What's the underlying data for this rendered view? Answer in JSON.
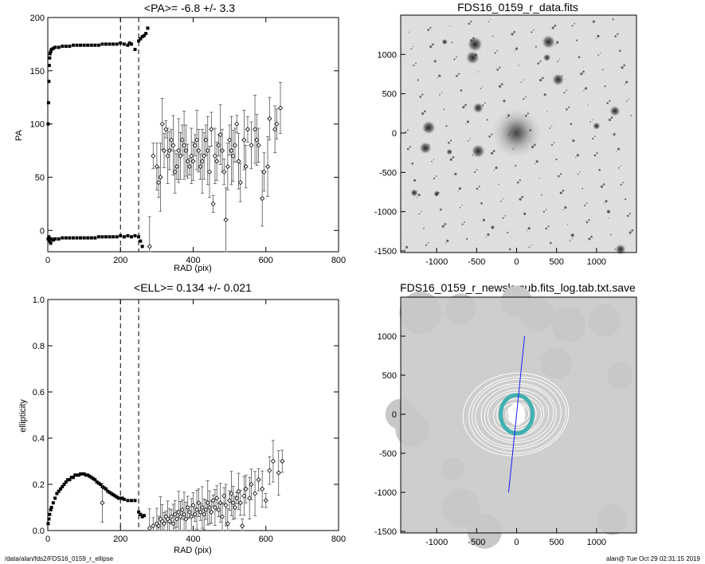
{
  "footer": {
    "left": "/data/alan/fds2/FDS16_0159_r_ellipse",
    "right": "alan@  Tue Oct 29 02:31:15 2019"
  },
  "chart_data": [
    {
      "type": "scatter",
      "title": "<PA>=  -6.8 +/-   3.3",
      "xlabel": "RAD (pix)",
      "ylabel": "PA",
      "xlim": [
        0,
        800
      ],
      "ylim": [
        -20,
        200
      ],
      "xticks": [
        "0",
        "200",
        "400",
        "600",
        "800"
      ],
      "yticks": [
        "0",
        "50",
        "100",
        "150",
        "200"
      ],
      "vlines": [
        200,
        250
      ],
      "series": [
        {
          "points_upper_dense": [
            [
              1,
              100
            ],
            [
              2,
              120
            ],
            [
              3,
              140
            ],
            [
              4,
              155
            ],
            [
              5,
              162
            ],
            [
              6,
              166
            ],
            [
              8,
              168
            ],
            [
              10,
              170
            ],
            [
              15,
              171
            ],
            [
              20,
              172
            ],
            [
              30,
              172
            ],
            [
              40,
              173
            ],
            [
              50,
              173
            ],
            [
              60,
              173
            ],
            [
              70,
              174
            ],
            [
              80,
              174
            ],
            [
              90,
              174
            ],
            [
              100,
              174
            ],
            [
              110,
              174
            ],
            [
              120,
              174
            ],
            [
              130,
              174
            ],
            [
              140,
              174
            ],
            [
              150,
              175
            ],
            [
              160,
              175
            ],
            [
              170,
              175
            ],
            [
              180,
              175
            ],
            [
              190,
              175
            ],
            [
              200,
              176
            ],
            [
              210,
              175
            ],
            [
              220,
              174
            ],
            [
              225,
              176
            ],
            [
              230,
              175
            ],
            [
              240,
              170
            ],
            [
              250,
              178
            ],
            [
              255,
              180
            ],
            [
              260,
              182
            ],
            [
              265,
              183
            ],
            [
              270,
              185
            ],
            [
              275,
              190
            ]
          ],
          "points_lower_dense": [
            [
              1,
              -8
            ],
            [
              3,
              -6
            ],
            [
              5,
              -10
            ],
            [
              8,
              -12
            ],
            [
              10,
              -8
            ],
            [
              15,
              -9
            ],
            [
              20,
              -8
            ],
            [
              30,
              -8
            ],
            [
              40,
              -7
            ],
            [
              50,
              -7
            ],
            [
              60,
              -7
            ],
            [
              70,
              -7
            ],
            [
              80,
              -7
            ],
            [
              90,
              -7
            ],
            [
              100,
              -7
            ],
            [
              110,
              -7
            ],
            [
              120,
              -7
            ],
            [
              130,
              -7
            ],
            [
              140,
              -6
            ],
            [
              150,
              -6
            ],
            [
              160,
              -6
            ],
            [
              170,
              -6
            ],
            [
              180,
              -6
            ],
            [
              190,
              -6
            ],
            [
              200,
              -5
            ],
            [
              210,
              -6
            ],
            [
              220,
              -5
            ],
            [
              230,
              -6
            ],
            [
              240,
              -5
            ],
            [
              250,
              -6
            ],
            [
              255,
              -10
            ],
            [
              260,
              -15
            ]
          ],
          "points_outer": [
            [
              280,
              -15
            ],
            [
              290,
              70
            ],
            [
              300,
              60
            ],
            [
              305,
              45
            ],
            [
              310,
              50
            ],
            [
              315,
              100
            ],
            [
              320,
              75
            ],
            [
              325,
              95
            ],
            [
              330,
              70
            ],
            [
              335,
              75
            ],
            [
              340,
              85
            ],
            [
              345,
              80
            ],
            [
              350,
              55
            ],
            [
              355,
              60
            ],
            [
              360,
              75
            ],
            [
              365,
              70
            ],
            [
              370,
              85
            ],
            [
              375,
              80
            ],
            [
              380,
              75
            ],
            [
              385,
              65
            ],
            [
              390,
              60
            ],
            [
              395,
              70
            ],
            [
              400,
              65
            ],
            [
              405,
              80
            ],
            [
              410,
              85
            ],
            [
              415,
              75
            ],
            [
              420,
              60
            ],
            [
              425,
              65
            ],
            [
              430,
              70
            ],
            [
              435,
              85
            ],
            [
              440,
              75
            ],
            [
              445,
              55
            ],
            [
              450,
              95
            ],
            [
              455,
              25
            ],
            [
              460,
              70
            ],
            [
              465,
              65
            ],
            [
              470,
              80
            ],
            [
              475,
              90
            ],
            [
              480,
              75
            ],
            [
              485,
              55
            ],
            [
              490,
              10
            ],
            [
              495,
              60
            ],
            [
              500,
              85
            ],
            [
              505,
              75
            ],
            [
              510,
              70
            ],
            [
              515,
              80
            ],
            [
              520,
              100
            ],
            [
              525,
              65
            ],
            [
              530,
              45
            ],
            [
              540,
              85
            ],
            [
              545,
              60
            ],
            [
              550,
              95
            ],
            [
              560,
              80
            ],
            [
              570,
              95
            ],
            [
              575,
              85
            ],
            [
              580,
              80
            ],
            [
              590,
              30
            ],
            [
              595,
              55
            ],
            [
              605,
              60
            ],
            [
              610,
              105
            ],
            [
              625,
              95
            ],
            [
              630,
              100
            ],
            [
              640,
              115
            ]
          ]
        }
      ]
    },
    {
      "type": "heatmap",
      "title": "FDS16_0159_r_data.fits",
      "xlim": [
        -1450,
        1500
      ],
      "ylim": [
        -1520,
        1500
      ],
      "xticks": [
        "-1000",
        "-500",
        "0",
        "500",
        "1000"
      ],
      "yticks": [
        "1000",
        "500",
        "0",
        "-500",
        "-1000",
        "-1500"
      ]
    },
    {
      "type": "scatter",
      "title": "<ELL>= 0.134 +/-  0.021",
      "xlabel": "RAD (pix)",
      "ylabel": "ellipticity",
      "xlim": [
        0,
        800
      ],
      "ylim": [
        0,
        1
      ],
      "xticks": [
        "0",
        "200",
        "400",
        "600",
        "800"
      ],
      "yticks": [
        "0.0",
        "0.2",
        "0.4",
        "0.6",
        "0.8",
        "1.0"
      ],
      "vlines": [
        200,
        250
      ],
      "series": [
        {
          "points_dense": [
            [
              1,
              0.03
            ],
            [
              3,
              0.05
            ],
            [
              5,
              0.07
            ],
            [
              8,
              0.09
            ],
            [
              10,
              0.1
            ],
            [
              15,
              0.12
            ],
            [
              20,
              0.14
            ],
            [
              25,
              0.16
            ],
            [
              30,
              0.17
            ],
            [
              35,
              0.18
            ],
            [
              40,
              0.19
            ],
            [
              45,
              0.2
            ],
            [
              50,
              0.21
            ],
            [
              55,
              0.22
            ],
            [
              60,
              0.22
            ],
            [
              65,
              0.23
            ],
            [
              70,
              0.23
            ],
            [
              75,
              0.24
            ],
            [
              80,
              0.24
            ],
            [
              85,
              0.24
            ],
            [
              90,
              0.245
            ],
            [
              95,
              0.245
            ],
            [
              100,
              0.245
            ],
            [
              105,
              0.24
            ],
            [
              110,
              0.24
            ],
            [
              115,
              0.235
            ],
            [
              120,
              0.23
            ],
            [
              125,
              0.225
            ],
            [
              130,
              0.22
            ],
            [
              135,
              0.21
            ],
            [
              140,
              0.205
            ],
            [
              145,
              0.2
            ],
            [
              150,
              0.19
            ],
            [
              155,
              0.185
            ],
            [
              160,
              0.18
            ],
            [
              165,
              0.17
            ],
            [
              170,
              0.165
            ],
            [
              175,
              0.16
            ],
            [
              180,
              0.155
            ],
            [
              185,
              0.15
            ],
            [
              190,
              0.145
            ],
            [
              195,
              0.14
            ],
            [
              200,
              0.14
            ],
            [
              205,
              0.14
            ],
            [
              210,
              0.135
            ],
            [
              220,
              0.13
            ],
            [
              230,
              0.13
            ],
            [
              240,
              0.13
            ],
            [
              250,
              0.08
            ],
            [
              255,
              0.07
            ],
            [
              260,
              0.06
            ],
            [
              265,
              0.065
            ]
          ],
          "points_outer": [
            [
              150,
              0.12
            ],
            [
              280,
              0.01
            ],
            [
              290,
              0.02
            ],
            [
              300,
              0.03
            ],
            [
              305,
              0.02
            ],
            [
              310,
              0.05
            ],
            [
              315,
              0.04
            ],
            [
              320,
              0.03
            ],
            [
              325,
              0.06
            ],
            [
              330,
              0.05
            ],
            [
              335,
              0.04
            ],
            [
              340,
              0.06
            ],
            [
              345,
              0.03
            ],
            [
              350,
              0.07
            ],
            [
              355,
              0.05
            ],
            [
              360,
              0.08
            ],
            [
              365,
              0.06
            ],
            [
              370,
              0.09
            ],
            [
              375,
              0.07
            ],
            [
              380,
              0.05
            ],
            [
              385,
              0.1
            ],
            [
              390,
              0.08
            ],
            [
              395,
              0.06
            ],
            [
              400,
              0.11
            ],
            [
              405,
              0.07
            ],
            [
              410,
              0.09
            ],
            [
              415,
              0.12
            ],
            [
              420,
              0.08
            ],
            [
              425,
              0.1
            ],
            [
              430,
              0.07
            ],
            [
              435,
              0.09
            ],
            [
              440,
              0.12
            ],
            [
              445,
              0.1
            ],
            [
              450,
              0.08
            ],
            [
              455,
              0.13
            ],
            [
              460,
              0.1
            ],
            [
              465,
              0.14
            ],
            [
              470,
              0.09
            ],
            [
              475,
              0.12
            ],
            [
              480,
              0.06
            ],
            [
              485,
              0.15
            ],
            [
              490,
              0.11
            ],
            [
              495,
              0.03
            ],
            [
              500,
              0.13
            ],
            [
              505,
              0.16
            ],
            [
              510,
              0.12
            ],
            [
              515,
              0.1
            ],
            [
              520,
              0.14
            ],
            [
              525,
              0.17
            ],
            [
              530,
              0.12
            ],
            [
              535,
              0.02
            ],
            [
              540,
              0.15
            ],
            [
              545,
              0.18
            ],
            [
              555,
              0.14
            ],
            [
              560,
              0.2
            ],
            [
              570,
              0.16
            ],
            [
              580,
              0.22
            ],
            [
              590,
              0.18
            ],
            [
              600,
              0.13
            ],
            [
              610,
              0.26
            ],
            [
              620,
              0.3
            ],
            [
              635,
              0.25
            ],
            [
              645,
              0.3
            ]
          ]
        }
      ]
    },
    {
      "type": "heatmap",
      "title": "FDS16_0159_r_newskysub.fits_log.tab.txt.save",
      "xlim": [
        -1450,
        1500
      ],
      "ylim": [
        -1520,
        1500
      ],
      "xticks": [
        "-1000",
        "-500",
        "0",
        "500",
        "1000"
      ],
      "yticks": [
        "1000",
        "500",
        "0",
        "-500",
        "-1000",
        "-1500"
      ],
      "line": [
        [
          -100,
          -1000
        ],
        [
          100,
          1000
        ]
      ],
      "ellipse_rings": 12
    }
  ]
}
